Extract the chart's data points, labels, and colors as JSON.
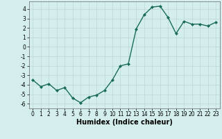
{
  "x": [
    0,
    1,
    2,
    3,
    4,
    5,
    6,
    7,
    8,
    9,
    10,
    11,
    12,
    13,
    14,
    15,
    16,
    17,
    18,
    19,
    20,
    21,
    22,
    23
  ],
  "y": [
    -3.5,
    -4.2,
    -3.9,
    -4.6,
    -4.3,
    -5.4,
    -5.9,
    -5.3,
    -5.1,
    -4.6,
    -3.5,
    -2.0,
    -1.8,
    1.9,
    3.4,
    4.2,
    4.3,
    3.1,
    1.4,
    2.7,
    2.4,
    2.4,
    2.2,
    2.6
  ],
  "line_color": "#1a6b5a",
  "marker": "D",
  "markersize": 2.0,
  "linewidth": 1.0,
  "xlabel": "Humidex (Indice chaleur)",
  "xlim": [
    -0.5,
    23.5
  ],
  "ylim": [
    -6.5,
    4.8
  ],
  "yticks": [
    -6,
    -5,
    -4,
    -3,
    -2,
    -1,
    0,
    1,
    2,
    3,
    4
  ],
  "xticks": [
    0,
    1,
    2,
    3,
    4,
    5,
    6,
    7,
    8,
    9,
    10,
    11,
    12,
    13,
    14,
    15,
    16,
    17,
    18,
    19,
    20,
    21,
    22,
    23
  ],
  "bg_color": "#d4eeee",
  "grid_color": "#c0dada",
  "tick_fontsize": 5.5,
  "xlabel_fontsize": 7.0
}
